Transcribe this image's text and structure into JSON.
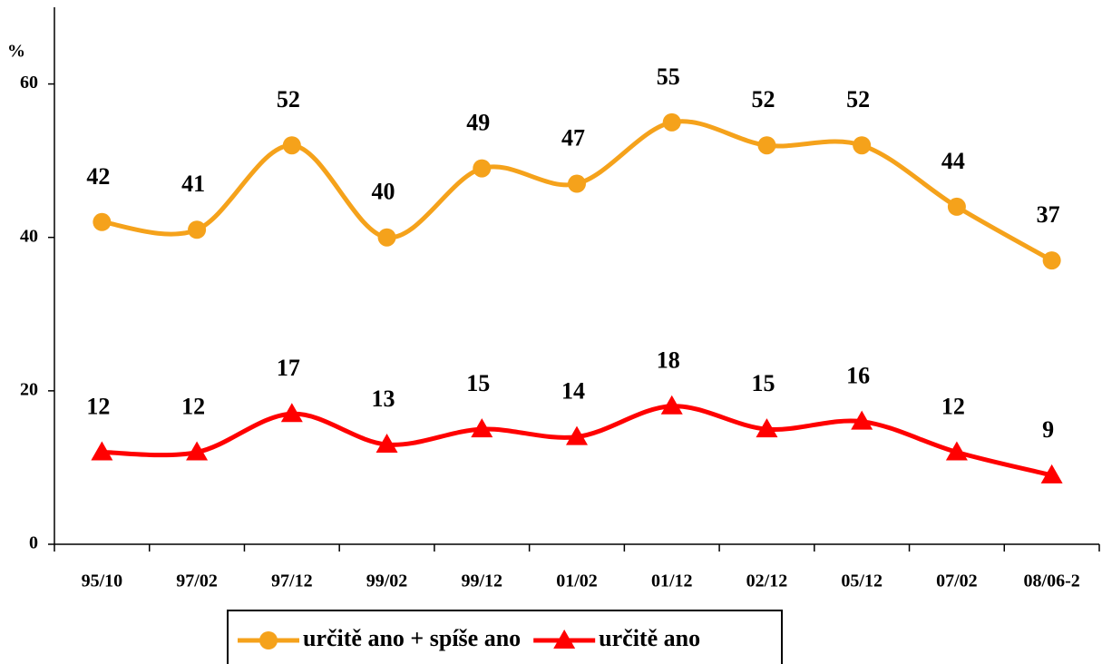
{
  "chart_data": {
    "type": "line",
    "y_label": "%",
    "categories": [
      "95/10",
      "97/02",
      "97/12",
      "99/02",
      "99/12",
      "01/02",
      "01/12",
      "02/12",
      "05/12",
      "07/02",
      "08/06-2"
    ],
    "series": [
      {
        "name": "určitě ano + spíše ano",
        "color": "#f5a21b",
        "marker": "circle",
        "values": [
          42,
          41,
          52,
          40,
          49,
          47,
          55,
          52,
          52,
          44,
          37
        ]
      },
      {
        "name": "určitě ano",
        "color": "#ff0000",
        "marker": "triangle",
        "values": [
          12,
          12,
          17,
          13,
          15,
          14,
          18,
          15,
          16,
          12,
          9
        ]
      }
    ],
    "ylim": [
      0,
      70
    ],
    "yticks": [
      0,
      20,
      40,
      60
    ],
    "grid": false,
    "legend": "bottom"
  }
}
